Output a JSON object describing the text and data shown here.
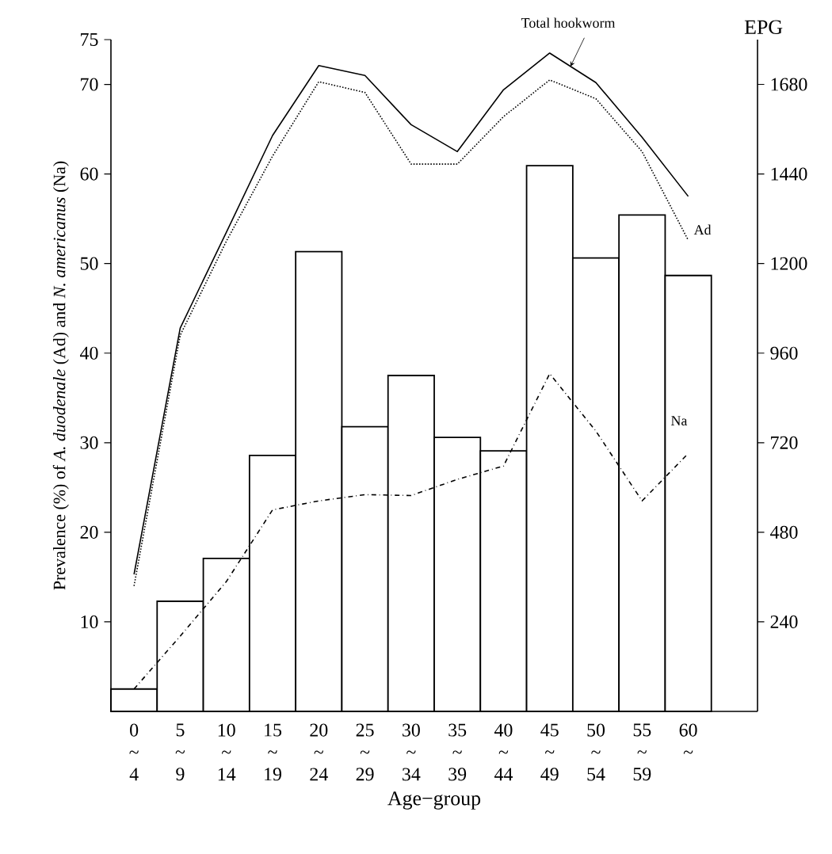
{
  "chart_data": {
    "type": "bar",
    "xlabel": "Age−group",
    "ylabel": "Prevalence (%) of *A. duodenale* (Ad) and *N. americanus* (Na)",
    "y2label": "EPG",
    "categories": [
      "0 ~ 4",
      "5 ~ 9",
      "10 ~ 14",
      "15 ~ 19",
      "20 ~ 24",
      "25 ~ 29",
      "30 ~ 34",
      "35 ~ 39",
      "40 ~ 44",
      "45 ~ 49",
      "50 ~ 54",
      "55 ~ 59",
      "60 ~"
    ],
    "series": [
      {
        "axis": "y2",
        "color": "#000000",
        "values": [
          60,
          295,
          410,
          686,
          1232,
          763,
          900,
          734,
          698,
          1462,
          1215,
          1330,
          1168
        ]
      },
      {
        "type": "line",
        "name": "Total hookworm",
        "color": "#000000",
        "line_style": "solid",
        "values": [
          15.3,
          42.8,
          53.5,
          64.3,
          72.1,
          71.0,
          65.5,
          62.5,
          69.4,
          73.5,
          70.2,
          64.1,
          57.5
        ]
      },
      {
        "type": "line",
        "name": "Ad",
        "color": "#000000",
        "line_style": "dotted",
        "values": [
          14.0,
          42.0,
          52.5,
          62.0,
          70.3,
          69.1,
          61.1,
          61.1,
          66.4,
          70.5,
          68.4,
          62.5,
          52.6
        ]
      },
      {
        "type": "line",
        "name": "Na",
        "color": "#000000",
        "line_style": "dashed",
        "values": [
          2.5,
          8.4,
          14.5,
          22.5,
          23.5,
          24.2,
          24.1,
          25.9,
          27.4,
          37.7,
          31.3,
          23.5,
          28.8
        ]
      }
    ],
    "ylim": [
      0,
      75
    ],
    "yticks": [
      10,
      20,
      30,
      40,
      50,
      60,
      70,
      75
    ],
    "y2lim": [
      0,
      1800
    ],
    "y2ticks": [
      240,
      480,
      720,
      960,
      1200,
      1440,
      1680
    ],
    "grid": false,
    "legend": false,
    "marker": "none"
  }
}
